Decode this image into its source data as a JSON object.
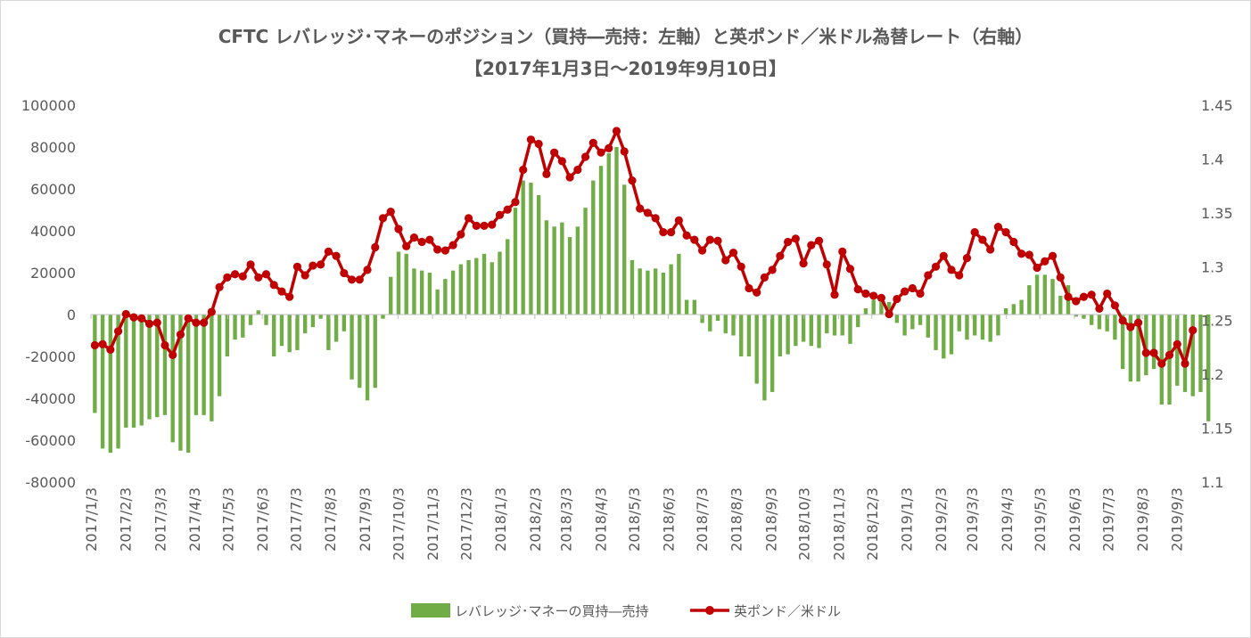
{
  "chart_data": {
    "type": "bar+line",
    "title": "CFTC レバレッジ･マネーのポジション（買持―売持：左軸）と英ポンド／米ドル為替レート（右軸）",
    "subtitle": "【2017年1月3日～2019年9月10日】",
    "y_left": {
      "min": -80000,
      "max": 100000,
      "ticks": [
        "-80000",
        "-60000",
        "-40000",
        "-20000",
        "0",
        "20000",
        "40000",
        "60000",
        "80000",
        "100000"
      ]
    },
    "y_right": {
      "min": 1.1,
      "max": 1.45,
      "ticks": [
        "1.1",
        "1.15",
        "1.2",
        "1.25",
        "1.3",
        "1.35",
        "1.4",
        "1.45"
      ]
    },
    "x_tick_labels": [
      "2017/1/3",
      "2017/2/3",
      "2017/3/3",
      "2017/4/3",
      "2017/5/3",
      "2017/6/3",
      "2017/7/3",
      "2017/8/3",
      "2017/9/3",
      "2017/10/3",
      "2017/11/3",
      "2017/12/3",
      "2018/1/3",
      "2018/2/3",
      "2018/3/3",
      "2018/4/3",
      "2018/5/3",
      "2018/6/3",
      "2018/7/3",
      "2018/8/3",
      "2018/9/3",
      "2018/10/3",
      "2018/11/3",
      "2018/12/3",
      "2019/1/3",
      "2019/2/3",
      "2019/3/3",
      "2019/4/3",
      "2019/5/3",
      "2019/6/3",
      "2019/7/3",
      "2019/8/3",
      "2019/9/3"
    ],
    "x_tick_weeks": [
      0,
      4.43,
      8.86,
      13.29,
      17.57,
      22,
      26.29,
      30.71,
      35.14,
      39.43,
      43.86,
      48.14,
      52.57,
      57,
      61,
      65.43,
      69.71,
      74.14,
      78.43,
      82.86,
      87.29,
      91.57,
      96,
      100.29,
      104.71,
      109.14,
      113.14,
      117.57,
      121.86,
      126.29,
      130.57,
      135,
      139.43
    ],
    "x_weeks_total": 140.5,
    "series": [
      {
        "name": "レバレッジ･マネーの買持―売持",
        "kind": "bar",
        "color": "#70ad47",
        "values": [
          -47000,
          -64000,
          -66000,
          -64000,
          -54000,
          -54000,
          -53000,
          -50000,
          -49000,
          -48000,
          -61000,
          -65000,
          -66000,
          -48000,
          -48000,
          -51000,
          -39000,
          -20000,
          -12000,
          -11000,
          -5000,
          2000,
          -5000,
          -20000,
          -15000,
          -18000,
          -17000,
          -9000,
          -6000,
          -2000,
          -17000,
          -13000,
          -8000,
          -31000,
          -35000,
          -41000,
          -35000,
          -2000,
          18000,
          30000,
          29000,
          22000,
          21000,
          20000,
          12000,
          17000,
          21000,
          24000,
          26000,
          27000,
          29000,
          25000,
          30000,
          36000,
          51000,
          64000,
          63000,
          57000,
          45000,
          42000,
          44000,
          37000,
          42000,
          51000,
          64000,
          71000,
          77000,
          80000,
          62000,
          26000,
          22000,
          21000,
          22000,
          20000,
          24000,
          29000,
          7000,
          7000,
          -4000,
          -8000,
          -3000,
          -9000,
          -10000,
          -20000,
          -20000,
          -33000,
          -41000,
          -37000,
          -20000,
          -19000,
          -15000,
          -13000,
          -15000,
          -16000,
          -9000,
          -10000,
          -10000,
          -14000,
          -6000,
          3000,
          7000,
          6000,
          6000,
          -4000,
          -10000,
          -7000,
          -5000,
          -11000,
          -17000,
          -21000,
          -19000,
          -8000,
          -12000,
          -10000,
          -12000,
          -13000,
          -10000,
          3000,
          5000,
          7000,
          14000,
          19000,
          19000,
          17000,
          9000,
          14000,
          -1000,
          -2000,
          -5000,
          -7000,
          -8000,
          -12000,
          -26000,
          -32000,
          -32000,
          -29000,
          -26000,
          -43000,
          -43000,
          -34000,
          -37000,
          -39000,
          -37000,
          -51000
        ]
      },
      {
        "name": "英ポンド／米ドル",
        "kind": "line",
        "color": "#c00000",
        "values": [
          1.227,
          1.228,
          1.223,
          1.24,
          1.256,
          1.253,
          1.252,
          1.247,
          1.248,
          1.227,
          1.218,
          1.237,
          1.252,
          1.248,
          1.248,
          1.258,
          1.281,
          1.29,
          1.293,
          1.291,
          1.302,
          1.29,
          1.293,
          1.283,
          1.277,
          1.272,
          1.3,
          1.292,
          1.301,
          1.302,
          1.314,
          1.31,
          1.294,
          1.288,
          1.288,
          1.297,
          1.318,
          1.345,
          1.351,
          1.335,
          1.319,
          1.327,
          1.323,
          1.325,
          1.316,
          1.315,
          1.32,
          1.33,
          1.345,
          1.338,
          1.338,
          1.339,
          1.348,
          1.353,
          1.36,
          1.39,
          1.418,
          1.414,
          1.386,
          1.406,
          1.398,
          1.383,
          1.39,
          1.402,
          1.415,
          1.406,
          1.41,
          1.426,
          1.407,
          1.38,
          1.354,
          1.35,
          1.345,
          1.332,
          1.332,
          1.343,
          1.329,
          1.325,
          1.315,
          1.325,
          1.324,
          1.306,
          1.313,
          1.3,
          1.28,
          1.276,
          1.29,
          1.297,
          1.31,
          1.323,
          1.326,
          1.303,
          1.32,
          1.324,
          1.302,
          1.274,
          1.314,
          1.298,
          1.279,
          1.275,
          1.273,
          1.271,
          1.256,
          1.27,
          1.277,
          1.28,
          1.275,
          1.292,
          1.3,
          1.31,
          1.297,
          1.292,
          1.308,
          1.332,
          1.325,
          1.316,
          1.337,
          1.332,
          1.323,
          1.312,
          1.311,
          1.299,
          1.305,
          1.31,
          1.29,
          1.272,
          1.268,
          1.272,
          1.274,
          1.261,
          1.275,
          1.264,
          1.25,
          1.244,
          1.248,
          1.22,
          1.22,
          1.21,
          1.218,
          1.228,
          1.21,
          1.241
        ]
      }
    ],
    "legend_position": "bottom",
    "grid": false
  }
}
